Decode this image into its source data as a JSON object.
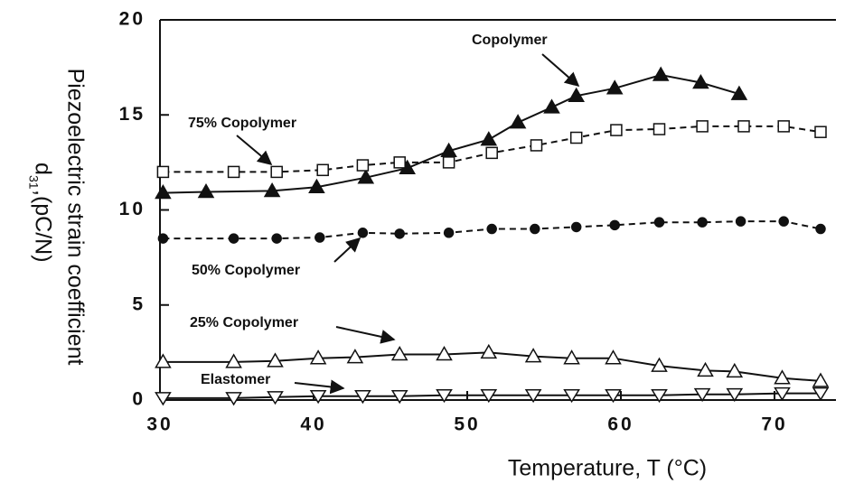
{
  "chart_data": {
    "type": "line",
    "x_label": "Temperature, T (°C)",
    "y_label": {
      "line1": "Piezoelectric strain coefficient",
      "symbol": "d",
      "subscript": "31",
      "unit": ",(pC/N)"
    },
    "xlim": [
      30,
      74
    ],
    "xticks": [
      30,
      40,
      50,
      60,
      70
    ],
    "ylim": [
      0,
      20
    ],
    "yticks": [
      0,
      5,
      10,
      15,
      20
    ],
    "series": [
      {
        "name": "Copolymer",
        "color": "#111",
        "marker": "triangle-filled",
        "dash": false,
        "x": [
          30.2,
          33.0,
          37.3,
          40.2,
          43.4,
          46.1,
          48.8,
          51.4,
          53.3,
          55.5,
          57.1,
          59.6,
          62.6,
          65.2,
          67.7
        ],
        "values": [
          10.9,
          10.95,
          11.0,
          11.2,
          11.7,
          12.2,
          13.1,
          13.7,
          14.6,
          15.4,
          16.0,
          16.4,
          17.1,
          16.7,
          16.1
        ]
      },
      {
        "name": "75% Copolymer",
        "color": "#111",
        "marker": "square-open",
        "dash": true,
        "x": [
          30.2,
          34.8,
          37.6,
          40.6,
          43.2,
          45.6,
          48.8,
          51.6,
          54.5,
          57.1,
          59.7,
          62.5,
          65.3,
          68.0,
          70.6,
          73.0
        ],
        "values": [
          12.0,
          12.0,
          12.0,
          12.1,
          12.35,
          12.5,
          12.5,
          13.0,
          13.4,
          13.8,
          14.2,
          14.25,
          14.4,
          14.4,
          14.4,
          14.1
        ]
      },
      {
        "name": "50% Copolymer",
        "color": "#111",
        "marker": "circle-filled",
        "dash": true,
        "x": [
          30.2,
          34.8,
          37.6,
          40.4,
          43.2,
          45.6,
          48.8,
          51.6,
          54.4,
          57.1,
          59.6,
          62.5,
          65.3,
          67.8,
          70.6,
          73.0
        ],
        "values": [
          8.5,
          8.5,
          8.5,
          8.55,
          8.8,
          8.75,
          8.8,
          9.0,
          9.0,
          9.1,
          9.2,
          9.35,
          9.35,
          9.4,
          9.4,
          9.0
        ]
      },
      {
        "name": "25% Copolymer",
        "color": "#111",
        "marker": "triangle-open",
        "dash": false,
        "x": [
          30.2,
          34.8,
          37.5,
          40.3,
          42.7,
          45.6,
          48.5,
          51.4,
          54.3,
          56.8,
          59.5,
          62.5,
          65.5,
          67.4,
          70.5,
          73.0
        ],
        "values": [
          2.0,
          2.0,
          2.05,
          2.2,
          2.25,
          2.4,
          2.4,
          2.5,
          2.3,
          2.2,
          2.2,
          1.8,
          1.55,
          1.5,
          1.15,
          1.0
        ]
      },
      {
        "name": "Elastomer",
        "color": "#111",
        "marker": "triangle-down-open",
        "dash": false,
        "x": [
          30.2,
          34.8,
          37.5,
          40.3,
          43.2,
          45.6,
          48.5,
          51.4,
          54.3,
          56.8,
          59.5,
          62.5,
          65.3,
          67.4,
          70.5,
          73.0
        ],
        "values": [
          0.1,
          0.1,
          0.15,
          0.2,
          0.2,
          0.2,
          0.25,
          0.25,
          0.25,
          0.25,
          0.25,
          0.25,
          0.3,
          0.3,
          0.35,
          0.35
        ]
      }
    ]
  }
}
